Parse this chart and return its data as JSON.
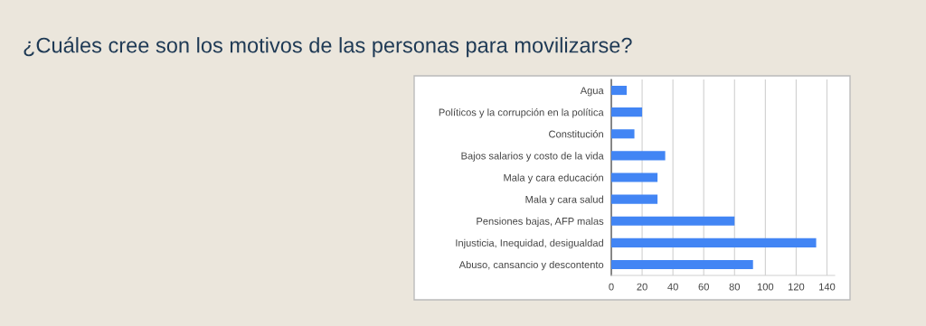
{
  "chart_data": {
    "type": "bar",
    "orientation": "horizontal",
    "title": "¿Cuáles cree son los motivos de las personas para movilizarse?",
    "categories": [
      "Agua",
      "Políticos y la corrupción en la política",
      "Constitución",
      "Bajos salarios y costo de la vida",
      "Mala y cara educación",
      "Mala y cara salud",
      "Pensiones bajas, AFP malas",
      "Injusticia, Inequidad, desigualdad",
      "Abuso, cansancio y descontento"
    ],
    "values": [
      10,
      20,
      15,
      35,
      30,
      30,
      80,
      133,
      92
    ],
    "color": "#4285f4",
    "xlim": [
      0,
      145
    ],
    "xticks": [
      0,
      20,
      40,
      60,
      80,
      100,
      120,
      140
    ],
    "grid": "x",
    "legend": false
  }
}
